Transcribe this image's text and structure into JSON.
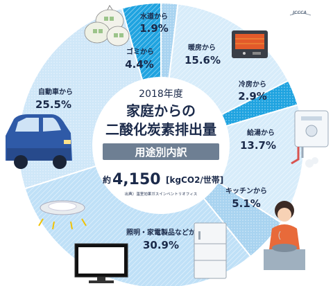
{
  "chart_data": {
    "type": "pie",
    "title_year": "2018年度",
    "title_line1": "家庭からの",
    "title_line2": "二酸化炭素排出量",
    "subtitle": "用途別内訳",
    "total_prefix": "約",
    "total_value": "4,150",
    "total_unit": "[kgCO2/世帯]",
    "source": "出典）温室効果ガスインベントリオフィス",
    "logo": "JCCCA",
    "slices": [
      {
        "label": "水道から",
        "pct_text": "1.9%",
        "value": 1.9,
        "color": "#a8d3f0",
        "text_color": "#1b2a4a"
      },
      {
        "label": "暖房から",
        "pct_text": "15.6%",
        "value": 15.6,
        "color": "#d7ecfa",
        "text_color": "#1b2a4a"
      },
      {
        "label": "冷房から",
        "pct_text": "2.9%",
        "value": 2.9,
        "color": "#1fa3e0",
        "text_color": "#1b2a4a"
      },
      {
        "label": "給湯から",
        "pct_text": "13.7%",
        "value": 13.7,
        "color": "#d7ecfa",
        "text_color": "#1b2a4a"
      },
      {
        "label": "キッチンから",
        "pct_text": "5.1%",
        "value": 5.1,
        "color": "#a8d3f0",
        "text_color": "#1b2a4a"
      },
      {
        "label": "照明・家電製品などから",
        "pct_text": "30.9%",
        "value": 30.9,
        "color": "#bfe0f7",
        "text_color": "#1b2a4a"
      },
      {
        "label": "自動車から",
        "pct_text": "25.5%",
        "value": 25.5,
        "color": "#cfe7f8",
        "text_color": "#1b2a4a"
      },
      {
        "label": "ゴミから",
        "pct_text": "4.4%",
        "value": 4.4,
        "color": "#1fa3e0",
        "text_color": "#1b2a4a"
      }
    ]
  }
}
